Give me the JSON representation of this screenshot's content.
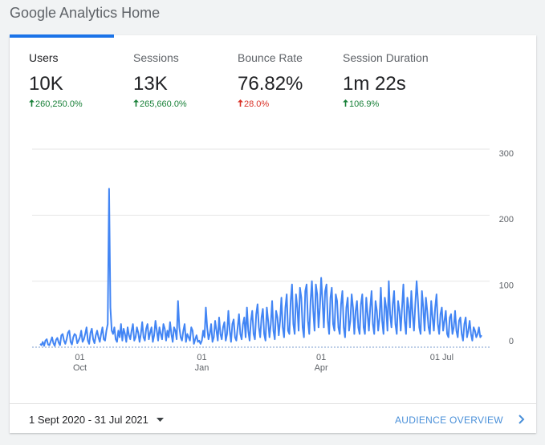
{
  "header": {
    "title": "Google Analytics Home"
  },
  "metrics": [
    {
      "label": "Users",
      "value": "10K",
      "change": "260,250.0%",
      "change_color": "#188038"
    },
    {
      "label": "Sessions",
      "value": "13K",
      "change": "265,660.0%",
      "change_color": "#188038"
    },
    {
      "label": "Bounce Rate",
      "value": "76.82%",
      "change": "28.0%",
      "change_color": "#d93025"
    },
    {
      "label": "Session Duration",
      "value": "1m 22s",
      "change": "106.9%",
      "change_color": "#188038"
    }
  ],
  "chart_data": {
    "type": "line",
    "color": "#4285f4",
    "grid": true,
    "ylim": [
      0,
      300
    ],
    "yticks": [
      0,
      100,
      200,
      300
    ],
    "categories": [
      null,
      null,
      null,
      null,
      null,
      null,
      null,
      null,
      null,
      null,
      null,
      null,
      null,
      null,
      null,
      null,
      null,
      null,
      null,
      null,
      null,
      null,
      null,
      null,
      null,
      null,
      null,
      null,
      null,
      null,
      "01 Oct",
      null,
      null,
      null,
      null,
      null,
      null,
      null,
      null,
      null,
      null,
      null,
      null,
      null,
      null,
      null,
      null,
      null,
      null,
      null,
      null,
      null,
      null,
      null,
      null,
      null,
      null,
      null,
      null,
      null,
      null,
      null,
      null,
      null,
      null,
      null,
      null,
      null,
      null,
      null,
      null,
      null,
      null,
      null,
      null,
      null,
      null,
      null,
      null,
      null,
      null,
      null,
      null,
      null,
      null,
      null,
      null,
      null,
      null,
      null,
      null,
      null,
      null,
      null,
      null,
      null,
      null,
      null,
      null,
      null,
      null,
      null,
      null,
      null,
      null,
      null,
      null,
      null,
      null,
      null,
      null,
      null,
      null,
      null,
      null,
      null,
      null,
      null,
      null,
      null,
      null,
      null,
      "01 Jan",
      null,
      null,
      null,
      null,
      null,
      null,
      null,
      null,
      null,
      null,
      null,
      null,
      null,
      null,
      null,
      null,
      null,
      null,
      null,
      null,
      null,
      null,
      null,
      null,
      null,
      null,
      null,
      null,
      null,
      null,
      null,
      null,
      null,
      null,
      null,
      null,
      null,
      null,
      null,
      null,
      null,
      null,
      null,
      null,
      null,
      null,
      null,
      null,
      null,
      null,
      null,
      null,
      null,
      null,
      null,
      null,
      null,
      null,
      null,
      null,
      null,
      null,
      null,
      null,
      null,
      null,
      null,
      null,
      null,
      null,
      null,
      null,
      null,
      null,
      null,
      null,
      null,
      null,
      null,
      null,
      null,
      null,
      null,
      null,
      null,
      null,
      null,
      null,
      null,
      "01 Apr",
      null,
      null,
      null,
      null,
      null,
      null,
      null,
      null,
      null,
      null,
      null,
      null,
      null,
      null,
      null,
      null,
      null,
      null,
      null,
      null,
      null,
      null,
      null,
      null,
      null,
      null,
      null,
      null,
      null,
      null,
      null,
      null,
      null,
      null,
      null,
      null,
      null,
      null,
      null,
      null,
      null,
      null,
      null,
      null,
      null,
      null,
      null,
      null,
      null,
      null,
      null,
      null,
      null,
      null,
      null,
      null,
      null,
      null,
      null,
      null,
      null,
      null,
      null,
      null,
      null,
      null,
      null,
      null,
      null,
      null,
      null,
      null,
      null,
      null,
      null,
      null,
      null,
      null,
      null,
      null,
      null,
      null,
      null,
      null,
      null,
      null,
      null,
      null,
      null,
      null,
      "01 Jul",
      null,
      null,
      null,
      null,
      null,
      null,
      null,
      null,
      null,
      null,
      null,
      null,
      null,
      null,
      null,
      null,
      null,
      null,
      null,
      null,
      null,
      null,
      null,
      null,
      null,
      null,
      null,
      null,
      null,
      null
    ],
    "values": [
      5,
      3,
      8,
      2,
      10,
      12,
      4,
      3,
      9,
      15,
      6,
      2,
      11,
      14,
      7,
      3,
      18,
      20,
      10,
      5,
      12,
      22,
      25,
      8,
      4,
      15,
      20,
      18,
      6,
      10,
      15,
      25,
      8,
      12,
      20,
      30,
      10,
      5,
      22,
      28,
      12,
      6,
      18,
      25,
      15,
      8,
      20,
      30,
      12,
      10,
      25,
      35,
      240,
      60,
      25,
      20,
      30,
      12,
      8,
      25,
      15,
      35,
      10,
      28,
      20,
      8,
      30,
      18,
      12,
      25,
      35,
      10,
      15,
      30,
      22,
      8,
      20,
      38,
      15,
      10,
      28,
      35,
      12,
      22,
      30,
      8,
      18,
      40,
      25,
      10,
      30,
      20,
      12,
      35,
      28,
      10,
      25,
      15,
      38,
      20,
      8,
      30,
      25,
      12,
      70,
      30,
      15,
      10,
      25,
      35,
      8,
      20,
      15,
      10,
      30,
      25,
      5,
      12,
      18,
      8,
      10,
      5,
      10,
      25,
      15,
      60,
      30,
      12,
      20,
      35,
      8,
      15,
      40,
      25,
      10,
      45,
      20,
      12,
      30,
      38,
      10,
      20,
      55,
      25,
      8,
      35,
      42,
      15,
      10,
      30,
      50,
      20,
      12,
      35,
      45,
      15,
      60,
      25,
      10,
      40,
      55,
      20,
      12,
      50,
      65,
      30,
      15,
      45,
      58,
      20,
      10,
      60,
      40,
      15,
      35,
      70,
      25,
      12,
      55,
      45,
      18,
      40,
      75,
      30,
      15,
      60,
      80,
      25,
      20,
      70,
      95,
      35,
      20,
      80,
      60,
      25,
      90,
      75,
      30,
      15,
      85,
      95,
      40,
      20,
      70,
      100,
      55,
      25,
      95,
      80,
      30,
      60,
      105,
      70,
      30,
      85,
      95,
      40,
      20,
      75,
      90,
      35,
      25,
      80,
      70,
      30,
      20,
      65,
      85,
      30,
      15,
      60,
      75,
      25,
      40,
      80,
      60,
      20,
      55,
      70,
      30,
      20,
      65,
      80,
      30,
      20,
      75,
      50,
      25,
      60,
      85,
      35,
      20,
      70,
      55,
      25,
      45,
      90,
      40,
      20,
      75,
      60,
      25,
      100,
      50,
      30,
      65,
      85,
      35,
      20,
      70,
      55,
      25,
      60,
      95,
      40,
      20,
      75,
      60,
      30,
      85,
      50,
      25,
      65,
      100,
      70,
      30,
      20,
      85,
      60,
      25,
      75,
      55,
      30,
      20,
      70,
      45,
      25,
      60,
      80,
      35,
      20,
      50,
      60,
      25,
      40,
      55,
      20,
      15,
      45,
      50,
      20,
      30,
      55,
      25,
      15,
      40,
      45,
      20,
      10,
      35,
      45,
      15,
      25,
      40,
      20,
      10,
      30,
      25,
      15,
      20,
      30,
      15,
      18
    ]
  },
  "footer": {
    "date_range": "1 Sept 2020 - 31 Jul 2021",
    "link": "AUDIENCE OVERVIEW"
  }
}
